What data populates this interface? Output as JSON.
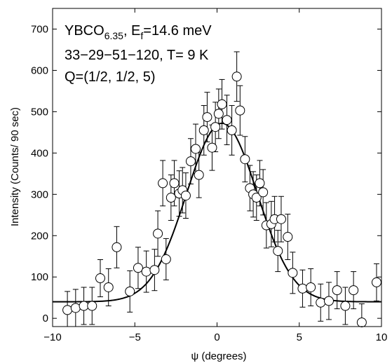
{
  "chart_data": {
    "type": "scatter",
    "xlabel": "ψ (degrees)",
    "ylabel": "Intensity (Counts/ 90 sec)",
    "xlim": [
      -10,
      10
    ],
    "ylim": [
      -20,
      750
    ],
    "xticks": [
      -10,
      -5,
      0,
      5,
      10
    ],
    "yticks": [
      0,
      100,
      200,
      300,
      400,
      500,
      600,
      700
    ],
    "grid": false,
    "annotations": {
      "line1": {
        "base": "YBCO",
        "sub": "6.35",
        "mid": ", E",
        "sub2": "f",
        "tail": "=14.6 meV"
      },
      "line2": "33−29−51−120, T= 9 K",
      "line3": "Q=(1/2, 1/2, 5)"
    },
    "series": [
      {
        "kind": "points",
        "marker": "open-circle",
        "points": [
          {
            "x": -9.1,
            "y": 20,
            "err": 45
          },
          {
            "x": -8.6,
            "y": 25,
            "err": 45
          },
          {
            "x": -8.1,
            "y": 30,
            "err": 45
          },
          {
            "x": -7.6,
            "y": 30,
            "err": 45
          },
          {
            "x": -7.1,
            "y": 97,
            "err": 45
          },
          {
            "x": -6.6,
            "y": 75,
            "err": 45
          },
          {
            "x": -6.1,
            "y": 172,
            "err": 50
          },
          {
            "x": -5.3,
            "y": 65,
            "err": 50
          },
          {
            "x": -4.8,
            "y": 122,
            "err": 50
          },
          {
            "x": -4.3,
            "y": 113,
            "err": 50
          },
          {
            "x": -3.8,
            "y": 117,
            "err": 50
          },
          {
            "x": -3.6,
            "y": 205,
            "err": 55
          },
          {
            "x": -3.3,
            "y": 327,
            "err": 55
          },
          {
            "x": -3.1,
            "y": 143,
            "err": 50
          },
          {
            "x": -2.8,
            "y": 292,
            "err": 55
          },
          {
            "x": -2.6,
            "y": 327,
            "err": 55
          },
          {
            "x": -2.3,
            "y": 302,
            "err": 55
          },
          {
            "x": -2.1,
            "y": 310,
            "err": 55
          },
          {
            "x": -1.9,
            "y": 297,
            "err": 55
          },
          {
            "x": -1.6,
            "y": 380,
            "err": 55
          },
          {
            "x": -1.3,
            "y": 410,
            "err": 60
          },
          {
            "x": -1.1,
            "y": 347,
            "err": 55
          },
          {
            "x": -0.8,
            "y": 455,
            "err": 60
          },
          {
            "x": -0.6,
            "y": 487,
            "err": 60
          },
          {
            "x": -0.3,
            "y": 413,
            "err": 55
          },
          {
            "x": -0.1,
            "y": 463,
            "err": 60
          },
          {
            "x": 0.1,
            "y": 495,
            "err": 60
          },
          {
            "x": 0.3,
            "y": 518,
            "err": 60
          },
          {
            "x": 0.6,
            "y": 480,
            "err": 60
          },
          {
            "x": 0.9,
            "y": 455,
            "err": 60
          },
          {
            "x": 1.2,
            "y": 585,
            "err": 60
          },
          {
            "x": 1.4,
            "y": 503,
            "err": 60
          },
          {
            "x": 1.7,
            "y": 385,
            "err": 55
          },
          {
            "x": 2.0,
            "y": 315,
            "err": 55
          },
          {
            "x": 2.2,
            "y": 300,
            "err": 55
          },
          {
            "x": 2.4,
            "y": 292,
            "err": 55
          },
          {
            "x": 2.6,
            "y": 327,
            "err": 55
          },
          {
            "x": 2.8,
            "y": 305,
            "err": 55
          },
          {
            "x": 3.0,
            "y": 225,
            "err": 55
          },
          {
            "x": 3.3,
            "y": 228,
            "err": 55
          },
          {
            "x": 3.5,
            "y": 240,
            "err": 55
          },
          {
            "x": 3.7,
            "y": 163,
            "err": 50
          },
          {
            "x": 3.9,
            "y": 240,
            "err": 55
          },
          {
            "x": 4.3,
            "y": 197,
            "err": 55
          },
          {
            "x": 4.6,
            "y": 110,
            "err": 50
          },
          {
            "x": 5.2,
            "y": 72,
            "err": 45
          },
          {
            "x": 5.7,
            "y": 75,
            "err": 45
          },
          {
            "x": 6.3,
            "y": 38,
            "err": 45
          },
          {
            "x": 6.8,
            "y": 42,
            "err": 45
          },
          {
            "x": 7.3,
            "y": 68,
            "err": 45
          },
          {
            "x": 7.8,
            "y": 30,
            "err": 45
          },
          {
            "x": 8.3,
            "y": 68,
            "err": 45
          },
          {
            "x": 8.8,
            "y": -10,
            "err": 45
          },
          {
            "x": 9.7,
            "y": 87,
            "err": 45
          }
        ]
      },
      {
        "kind": "fit-curve",
        "model": "gaussian",
        "background": 40,
        "amplitude": 432,
        "center": 0.3,
        "sigma": 2.15
      }
    ]
  }
}
